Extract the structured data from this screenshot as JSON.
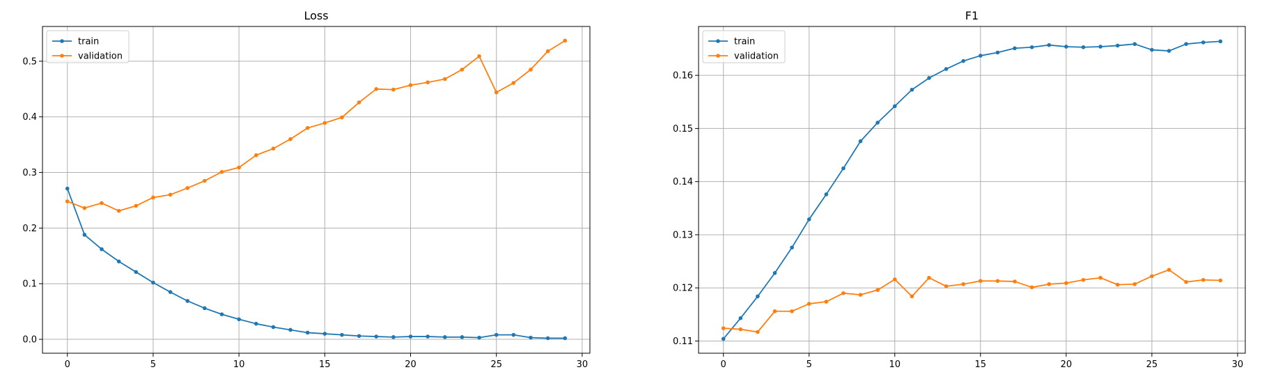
{
  "chart_data": [
    {
      "type": "line",
      "title": "Loss",
      "xlabel": "",
      "ylabel": "",
      "xlim": [
        -1.45,
        30.45
      ],
      "ylim": [
        -0.025,
        0.5625
      ],
      "xticks": [
        0,
        5,
        10,
        15,
        20,
        25,
        30
      ],
      "yticks": [
        0.0,
        0.1,
        0.2,
        0.3,
        0.4,
        0.5
      ],
      "ytick_labels": [
        "0.0",
        "0.1",
        "0.2",
        "0.3",
        "0.4",
        "0.5"
      ],
      "grid": true,
      "legend_position": "upper-left",
      "x": [
        0,
        1,
        2,
        3,
        4,
        5,
        6,
        7,
        8,
        9,
        10,
        11,
        12,
        13,
        14,
        15,
        16,
        17,
        18,
        19,
        20,
        21,
        22,
        23,
        24,
        25,
        26,
        27,
        28,
        29
      ],
      "series": [
        {
          "name": "train",
          "color": "#1f77b4",
          "values": [
            0.271,
            0.188,
            0.162,
            0.14,
            0.121,
            0.102,
            0.085,
            0.069,
            0.056,
            0.045,
            0.036,
            0.028,
            0.022,
            0.017,
            0.012,
            0.01,
            0.008,
            0.006,
            0.005,
            0.004,
            0.005,
            0.005,
            0.004,
            0.004,
            0.003,
            0.008,
            0.008,
            0.003,
            0.002,
            0.002
          ]
        },
        {
          "name": "validation",
          "color": "#ff7f0e",
          "values": [
            0.248,
            0.236,
            0.245,
            0.231,
            0.24,
            0.255,
            0.26,
            0.272,
            0.285,
            0.301,
            0.309,
            0.331,
            0.343,
            0.36,
            0.38,
            0.389,
            0.399,
            0.426,
            0.45,
            0.449,
            0.457,
            0.462,
            0.468,
            0.485,
            0.509,
            0.444,
            0.461,
            0.485,
            0.518,
            0.537
          ]
        }
      ]
    },
    {
      "type": "line",
      "title": "F1",
      "xlabel": "",
      "ylabel": "",
      "xlim": [
        -1.45,
        30.45
      ],
      "ylim": [
        0.1077,
        0.1692
      ],
      "xticks": [
        0,
        5,
        10,
        15,
        20,
        25,
        30
      ],
      "yticks": [
        0.11,
        0.12,
        0.13,
        0.14,
        0.15,
        0.16
      ],
      "ytick_labels": [
        "0.11",
        "0.12",
        "0.13",
        "0.14",
        "0.15",
        "0.16"
      ],
      "grid": true,
      "legend_position": "upper-left",
      "x": [
        0,
        1,
        2,
        3,
        4,
        5,
        6,
        7,
        8,
        9,
        10,
        11,
        12,
        13,
        14,
        15,
        16,
        17,
        18,
        19,
        20,
        21,
        22,
        23,
        24,
        25,
        26,
        27,
        28,
        29
      ],
      "series": [
        {
          "name": "train",
          "color": "#1f77b4",
          "values": [
            0.1104,
            0.1143,
            0.1184,
            0.1228,
            0.1276,
            0.1329,
            0.1376,
            0.1425,
            0.1476,
            0.1511,
            0.1542,
            0.1573,
            0.1595,
            0.1612,
            0.1627,
            0.1637,
            0.1643,
            0.1651,
            0.1653,
            0.1657,
            0.1654,
            0.1653,
            0.1654,
            0.1656,
            0.1659,
            0.1648,
            0.1646,
            0.1659,
            0.1662,
            0.1664
          ]
        },
        {
          "name": "validation",
          "color": "#ff7f0e",
          "values": [
            0.1124,
            0.1122,
            0.1117,
            0.1156,
            0.1156,
            0.117,
            0.1174,
            0.119,
            0.1187,
            0.1196,
            0.1216,
            0.1184,
            0.1219,
            0.1203,
            0.1207,
            0.1213,
            0.1213,
            0.1212,
            0.1201,
            0.1207,
            0.1209,
            0.1215,
            0.1219,
            0.1206,
            0.1207,
            0.1222,
            0.1234,
            0.1211,
            0.1215,
            0.1214
          ]
        }
      ]
    }
  ]
}
